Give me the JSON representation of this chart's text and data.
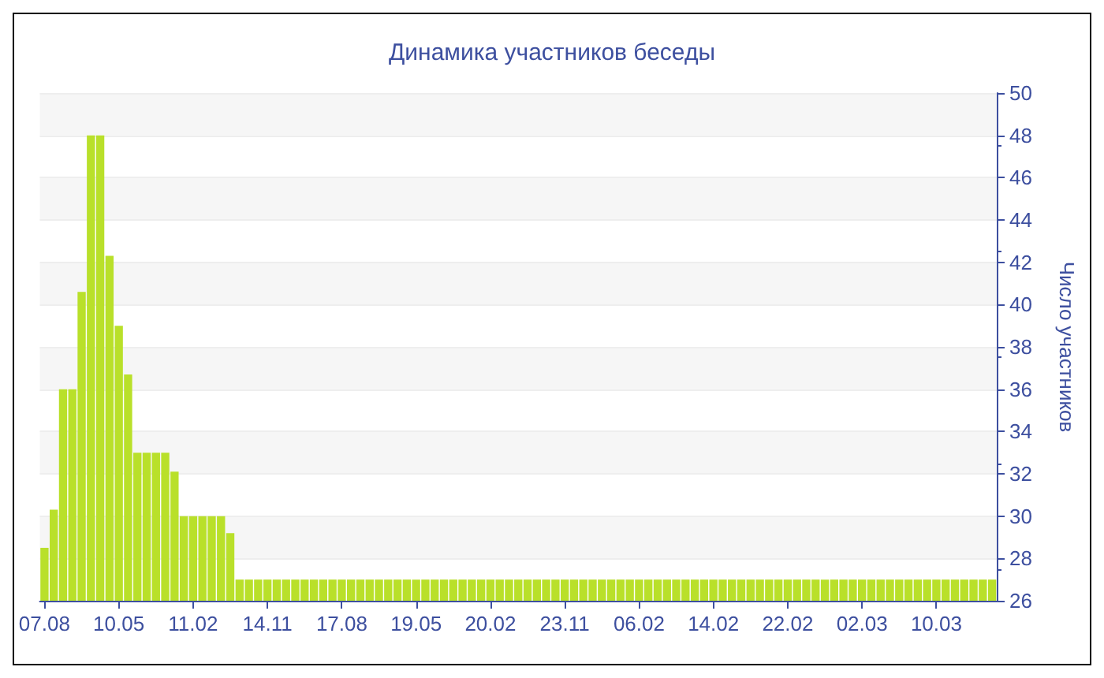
{
  "chart_data": {
    "type": "bar",
    "title": "Динамика участников беседы",
    "ylabel": "Число участников",
    "categories": [
      "07.08",
      null,
      null,
      null,
      null,
      null,
      null,
      null,
      "10.05",
      null,
      null,
      null,
      null,
      null,
      null,
      null,
      "11.02",
      null,
      null,
      null,
      null,
      null,
      null,
      null,
      "14.11",
      null,
      null,
      null,
      null,
      null,
      null,
      null,
      "17.08",
      null,
      null,
      null,
      null,
      null,
      null,
      null,
      "19.05",
      null,
      null,
      null,
      null,
      null,
      null,
      null,
      "20.02",
      null,
      null,
      null,
      null,
      null,
      null,
      null,
      "23.11",
      null,
      null,
      null,
      null,
      null,
      null,
      null,
      "06.02",
      null,
      null,
      null,
      null,
      null,
      null,
      null,
      "14.02",
      null,
      null,
      null,
      null,
      null,
      null,
      null,
      "22.02",
      null,
      null,
      null,
      null,
      null,
      null,
      null,
      "02.03",
      null,
      null,
      null,
      null,
      null,
      null,
      null,
      "10.03",
      null,
      null,
      null,
      null,
      null,
      null
    ],
    "values": [
      28.5,
      30.3,
      36,
      36,
      40.6,
      48,
      48,
      42.3,
      39,
      36.7,
      33,
      33,
      33,
      33,
      32.1,
      30,
      30,
      30,
      30,
      30,
      29.2,
      27,
      27,
      27,
      27,
      27,
      27,
      27,
      27,
      27,
      27,
      27,
      27,
      27,
      27,
      27,
      27,
      27,
      27,
      27,
      27,
      27,
      27,
      27,
      27,
      27,
      27,
      27,
      27,
      27,
      27,
      27,
      27,
      27,
      27,
      27,
      27,
      27,
      27,
      27,
      27,
      27,
      27,
      27,
      27,
      27,
      27,
      27,
      27,
      27,
      27,
      27,
      27,
      27,
      27,
      27,
      27,
      27,
      27,
      27,
      27,
      27,
      27,
      27,
      27,
      27,
      27,
      27,
      27,
      27,
      27,
      27,
      27,
      27,
      27,
      27,
      27,
      27,
      27,
      27,
      27,
      27,
      27
    ],
    "color": "#b9e02a",
    "ylim": [
      26,
      50
    ],
    "yticks": [
      26,
      28,
      30,
      32,
      34,
      36,
      38,
      40,
      42,
      44,
      46,
      48,
      50
    ],
    "grid": "y"
  }
}
